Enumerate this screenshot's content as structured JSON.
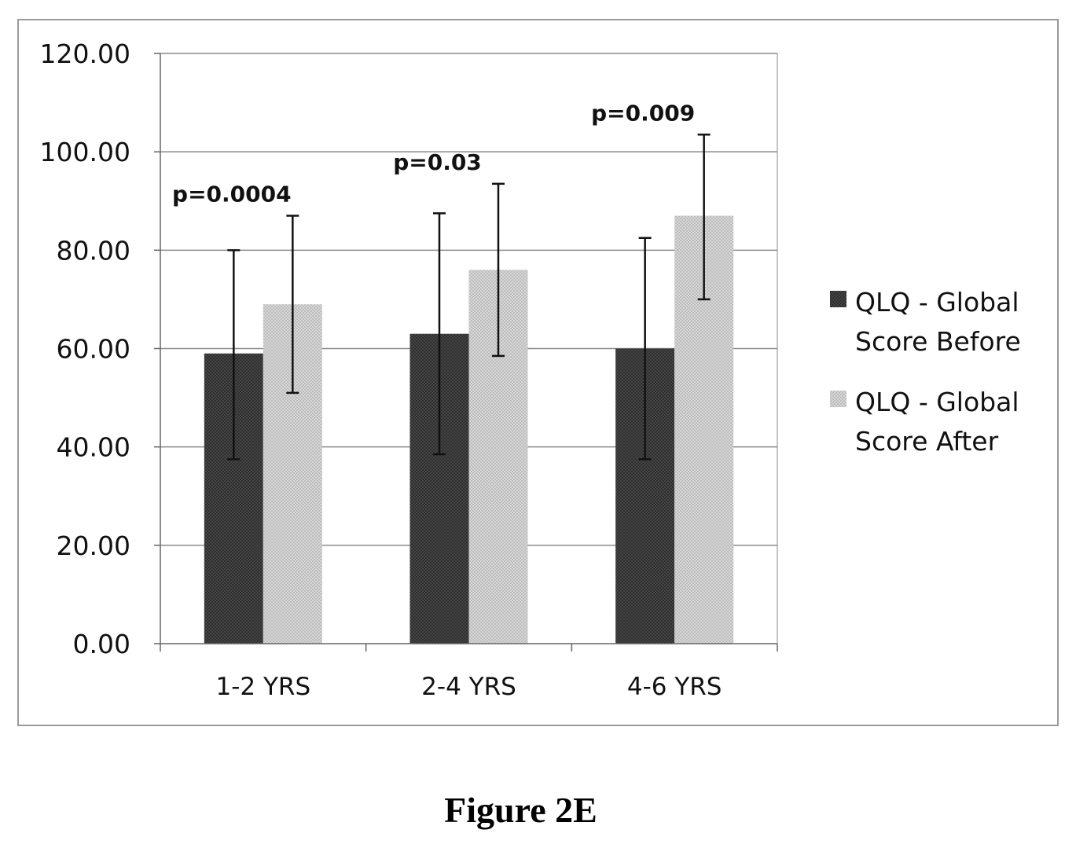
{
  "chart_data": {
    "type": "bar",
    "categories": [
      "1-2 YRS",
      "2-4 YRS",
      "4-6 YRS"
    ],
    "series": [
      {
        "name": "QLQ - Global Score Before",
        "values": [
          59,
          63,
          60
        ],
        "error_low": [
          37.5,
          38.5,
          37.5
        ],
        "error_high": [
          80,
          87.5,
          82.5
        ],
        "pattern": "dark-crosshatch"
      },
      {
        "name": "QLQ - Global Score After",
        "values": [
          69,
          76,
          87
        ],
        "error_low": [
          51,
          58.5,
          70
        ],
        "error_high": [
          87,
          93.5,
          103.5
        ],
        "pattern": "light-crosshatch"
      }
    ],
    "y_ticks": [
      "0.00",
      "20.00",
      "40.00",
      "60.00",
      "80.00",
      "100.00",
      "120.00"
    ],
    "ylim": [
      0,
      120
    ],
    "annotations": [
      {
        "category": "1-2 YRS",
        "text": "p=0.0004"
      },
      {
        "category": "2-4 YRS",
        "text": "p=0.03"
      },
      {
        "category": "4-6 YRS",
        "text": "p=0.009"
      }
    ],
    "legend_lines": [
      [
        "QLQ - Global",
        "Score Before"
      ],
      [
        "QLQ - Global",
        "Score After"
      ]
    ],
    "legend_position": "right",
    "grid": true,
    "colors": {
      "before": "#4a4a4a",
      "after": "#d6d6d6",
      "grid": "#8a8a8a",
      "frame": "#9a9a9a"
    }
  },
  "figure_caption": "Figure 2E"
}
